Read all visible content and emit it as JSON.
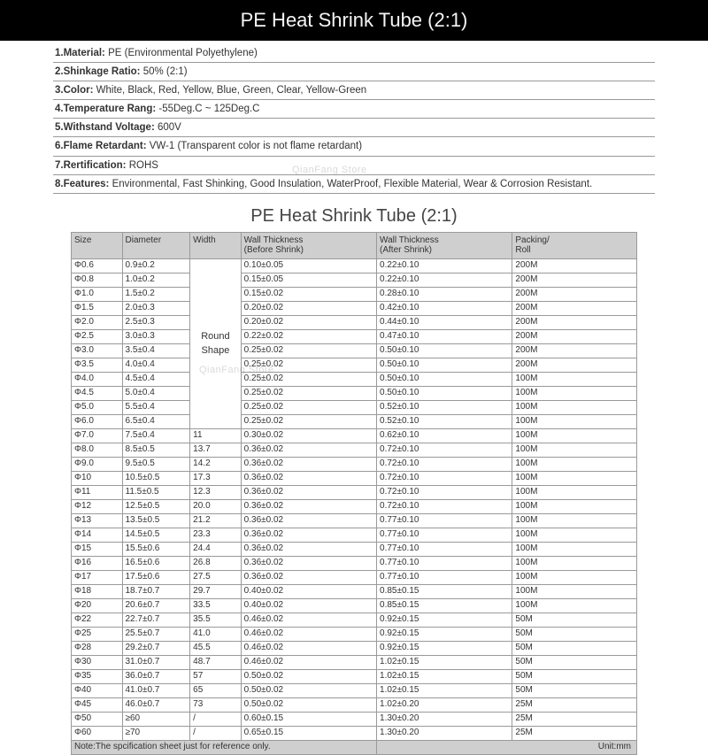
{
  "title": "PE Heat Shrink Tube (2:1)",
  "watermark": "QianFang Store",
  "specs": [
    {
      "n": "1",
      "label": "Material:",
      "value": "PE (Environmental Polyethylene)"
    },
    {
      "n": "2",
      "label": "Shinkage Ratio:",
      "value": "50% (2:1)"
    },
    {
      "n": "3",
      "label": "Color:",
      "value": "White, Black, Red, Yellow, Blue, Green, Clear, Yellow-Green"
    },
    {
      "n": "4",
      "label": "Temperature Rang:",
      "value": "-55Deg.C ~ 125Deg.C"
    },
    {
      "n": "5",
      "label": "Withstand Voltage:",
      "value": "600V"
    },
    {
      "n": "6",
      "label": "Flame Retardant:",
      "value": "VW-1 (Transparent color is not flame retardant)"
    },
    {
      "n": "7",
      "label": "Rertification:",
      "value": "ROHS"
    },
    {
      "n": "8",
      "label": "Features:",
      "value": "Environmental, Fast Shinking, Good Insulation, WaterProof, Flexible Material, Wear & Corrosion Resistant."
    }
  ],
  "subtitle": "PE Heat Shrink Tube (2:1)",
  "columns": [
    "Size",
    "Diameter",
    "Width",
    "Wall Thickness\n(Before Shrink)",
    "Wall Thickness\n(After Shrink)",
    "Packing/\nRoll"
  ],
  "merged_width_label": "Round\nShape",
  "merged_rowspan": 12,
  "rows": [
    [
      "Φ0.6",
      "0.9±0.2",
      null,
      "0.10±0.05",
      "0.22±0.10",
      "200M"
    ],
    [
      "Φ0.8",
      "1.0±0.2",
      null,
      "0.15±0.05",
      "0.22±0.10",
      "200M"
    ],
    [
      "Φ1.0",
      "1.5±0.2",
      null,
      "0.15±0.02",
      "0.28±0.10",
      "200M"
    ],
    [
      "Φ1.5",
      "2.0±0.3",
      null,
      "0.20±0.02",
      "0.42±0.10",
      "200M"
    ],
    [
      "Φ2.0",
      "2.5±0.3",
      null,
      "0.20±0.02",
      "0.44±0.10",
      "200M"
    ],
    [
      "Φ2.5",
      "3.0±0.3",
      null,
      "0.22±0.02",
      "0.47±0.10",
      "200M"
    ],
    [
      "Φ3.0",
      "3.5±0.4",
      null,
      "0.25±0.02",
      "0.50±0.10",
      "200M"
    ],
    [
      "Φ3.5",
      "4.0±0.4",
      null,
      "0.25±0.02",
      "0.50±0.10",
      "200M"
    ],
    [
      "Φ4.0",
      "4.5±0.4",
      null,
      "0.25±0.02",
      "0.50±0.10",
      "100M"
    ],
    [
      "Φ4.5",
      "5.0±0.4",
      null,
      "0.25±0.02",
      "0.50±0.10",
      "100M"
    ],
    [
      "Φ5.0",
      "5.5±0.4",
      null,
      "0.25±0.02",
      "0.52±0.10",
      "100M"
    ],
    [
      "Φ6.0",
      "6.5±0.4",
      null,
      "0.25±0.02",
      "0.52±0.10",
      "100M"
    ],
    [
      "Φ7.0",
      "7.5±0.4",
      "11",
      "0.30±0.02",
      "0.62±0.10",
      "100M"
    ],
    [
      "Φ8.0",
      "8.5±0.5",
      "13.7",
      "0.36±0.02",
      "0.72±0.10",
      "100M"
    ],
    [
      "Φ9.0",
      "9.5±0.5",
      "14.2",
      "0.36±0.02",
      "0.72±0.10",
      "100M"
    ],
    [
      "Φ10",
      "10.5±0.5",
      "17.3",
      "0.36±0.02",
      "0.72±0.10",
      "100M"
    ],
    [
      "Φ11",
      "11.5±0.5",
      "12.3",
      "0.36±0.02",
      "0.72±0.10",
      "100M"
    ],
    [
      "Φ12",
      "12.5±0.5",
      "20.0",
      "0.36±0.02",
      "0.72±0.10",
      "100M"
    ],
    [
      "Φ13",
      "13.5±0.5",
      "21.2",
      "0.36±0.02",
      "0.77±0.10",
      "100M"
    ],
    [
      "Φ14",
      "14.5±0.5",
      "23.3",
      "0.36±0.02",
      "0.77±0.10",
      "100M"
    ],
    [
      "Φ15",
      "15.5±0.6",
      "24.4",
      "0.36±0.02",
      "0.77±0.10",
      "100M"
    ],
    [
      "Φ16",
      "16.5±0.6",
      "26.8",
      "0.36±0.02",
      "0.77±0.10",
      "100M"
    ],
    [
      "Φ17",
      "17.5±0.6",
      "27.5",
      "0.36±0.02",
      "0.77±0.10",
      "100M"
    ],
    [
      "Φ18",
      "18.7±0.7",
      "29.7",
      "0.40±0.02",
      "0.85±0.15",
      "100M"
    ],
    [
      "Φ20",
      "20.6±0.7",
      "33.5",
      "0.40±0.02",
      "0.85±0.15",
      "100M"
    ],
    [
      "Φ22",
      "22.7±0.7",
      "35.5",
      "0.46±0.02",
      "0.92±0.15",
      "50M"
    ],
    [
      "Φ25",
      "25.5±0.7",
      "41.0",
      "0.46±0.02",
      "0.92±0.15",
      "50M"
    ],
    [
      "Φ28",
      "29.2±0.7",
      "45.5",
      "0.46±0.02",
      "0.92±0.15",
      "50M"
    ],
    [
      "Φ30",
      "31.0±0.7",
      "48.7",
      "0.46±0.02",
      "1.02±0.15",
      "50M"
    ],
    [
      "Φ35",
      "36.0±0.7",
      "57",
      "0.50±0.02",
      "1.02±0.15",
      "50M"
    ],
    [
      "Φ40",
      "41.0±0.7",
      "65",
      "0.50±0.02",
      "1.02±0.15",
      "50M"
    ],
    [
      "Φ45",
      "46.0±0.7",
      "73",
      "0.50±0.02",
      "1.02±0.20",
      "25M"
    ],
    [
      "Φ50",
      "≥60",
      "/",
      "0.60±0.15",
      "1.30±0.20",
      "25M"
    ],
    [
      "Φ60",
      "≥70",
      "/",
      "0.65±0.15",
      "1.30±0.20",
      "25M"
    ]
  ],
  "footer_note": "Note:The spcification sheet just for reference only.",
  "footer_unit": "Unit:mm"
}
